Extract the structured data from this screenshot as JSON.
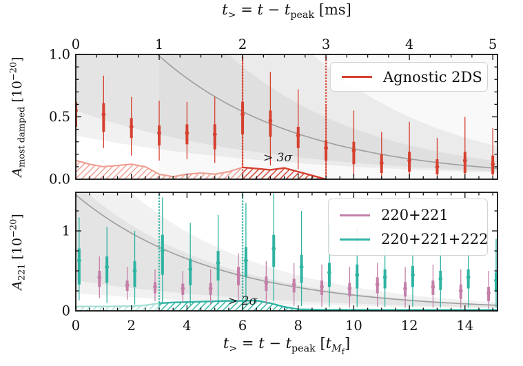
{
  "labels": {
    "top_x": {
      "t1": "t",
      "sub1": ">",
      "eq": " = ",
      "t2": "t",
      "minus": " − ",
      "t3": "t",
      "sub2": "peak",
      "unit": " [ms]"
    },
    "bottom_x": {
      "t1": "t",
      "sub1": ">",
      "eq": " = ",
      "t2": "t",
      "minus": " − ",
      "t3": "t",
      "sub2": "peak",
      "unit_open": " [",
      "unit_t": "t",
      "unit_sub": "M",
      "unit_subsub": "f",
      "unit_close": "]"
    },
    "y_top": {
      "A": "A",
      "sub": "most damped",
      "unit_open": " [10",
      "sup": "−20",
      "unit_close": "]"
    },
    "y_bottom": {
      "A": "A",
      "sub": "221",
      "unit_open": " [10",
      "sup": "−20",
      "unit_close": "]"
    }
  },
  "chart_data": [
    {
      "type": "errorbar",
      "panel": "top",
      "x_axis": {
        "unit": "ms",
        "ticks_ms": [
          0,
          1,
          2,
          3,
          4,
          5
        ],
        "tick_labels": [
          "0",
          "1",
          "2",
          "3",
          "4",
          "5"
        ],
        "tmf_per_ms": 3,
        "xlim_tmf": [
          0,
          15.17
        ],
        "minor_step_ms": 0.25,
        "label": "t> = t − tpeak [ms]"
      },
      "y_axis": {
        "label": "A_most damped [10^-20]",
        "ticks": [
          0,
          0.5,
          1.0
        ],
        "tick_labels": [
          "0.0",
          "0.5",
          "1.0"
        ],
        "ylim": [
          0,
          1.0
        ],
        "minor_step": 0.1
      },
      "legend": [
        {
          "label": "Agnostic 2DS",
          "color": "#d6402f"
        }
      ],
      "vlines_tmf": [
        6,
        9
      ],
      "vline_color": "#d6402f",
      "annotation": {
        "text": "> 3σ",
        "x_tmf": 6.8,
        "y": 0.15
      },
      "series": [
        {
          "name": "Agnostic 2DS",
          "color": "#d6402f",
          "x_tmf": [
            0,
            1,
            2,
            3,
            4,
            5,
            6,
            7,
            8,
            9,
            10,
            11,
            12,
            13,
            14,
            15
          ],
          "median": [
            0.55,
            0.52,
            0.42,
            0.37,
            0.37,
            0.36,
            0.52,
            0.47,
            0.35,
            0.25,
            0.23,
            0.13,
            0.15,
            0.1,
            0.15,
            0.12
          ],
          "ci50_lo": [
            0.42,
            0.38,
            0.33,
            0.27,
            0.28,
            0.24,
            0.36,
            0.34,
            0.25,
            0.15,
            0.12,
            0.05,
            0.06,
            0.04,
            0.05,
            0.04
          ],
          "ci50_hi": [
            0.62,
            0.61,
            0.49,
            0.43,
            0.44,
            0.44,
            0.62,
            0.55,
            0.42,
            0.31,
            0.3,
            0.2,
            0.22,
            0.16,
            0.22,
            0.19
          ],
          "ci90_lo": [
            0.3,
            0.25,
            0.19,
            0.15,
            0.16,
            0.13,
            0.09,
            0.11,
            0.08,
            0.03,
            0.02,
            0.0,
            0.0,
            0.0,
            0.0,
            0.0
          ],
          "ci90_hi": [
            0.8,
            0.83,
            0.66,
            0.63,
            0.62,
            0.66,
            1.0,
            0.86,
            0.72,
            0.6,
            0.55,
            0.38,
            0.46,
            0.33,
            0.5,
            0.41
          ]
        }
      ],
      "exclusion_region": {
        "sigma_label": "> 3σ",
        "pale_color": "#ef9f93",
        "dark_color": "#d6402f",
        "pale_range_tmf": [
          0,
          6
        ],
        "dark_range_tmf": [
          6,
          9
        ],
        "boundary_x_tmf": [
          0,
          0.5,
          1,
          1.5,
          2,
          2.5,
          3,
          3.5,
          4,
          4.5,
          5,
          5.5,
          6,
          6.5,
          7,
          7.5,
          8,
          8.5,
          9
        ],
        "boundary_y": [
          0.15,
          0.12,
          0.1,
          0.11,
          0.12,
          0.1,
          0.04,
          0.02,
          0.04,
          0.05,
          0.04,
          0.06,
          0.095,
          0.085,
          0.075,
          0.09,
          0.06,
          0.03,
          0.0
        ]
      },
      "model_curve": {
        "color": "#a0a0a0",
        "amp": 1.8,
        "tau_tmf": 5,
        "bands": [
          {
            "lo_amp": 0.55,
            "lo_tau": 7,
            "hi_amp": 3.0,
            "hi_tau": 5
          },
          {
            "lo_amp": 0.35,
            "lo_tau": 8,
            "hi_amp": 5.5,
            "hi_tau": 5
          }
        ],
        "overlay_from_tmf": 3
      }
    },
    {
      "type": "errorbar",
      "panel": "bottom",
      "x_axis": {
        "unit": "t_Mf",
        "ticks": [
          0,
          2,
          4,
          6,
          8,
          10,
          12,
          14
        ],
        "tick_labels": [
          "0",
          "2",
          "4",
          "6",
          "8",
          "10",
          "12",
          "14"
        ],
        "xlim_tmf": [
          0,
          15.17
        ],
        "minor_step": 0.5,
        "label": "t> = t − tpeak [t_Mf]"
      },
      "y_axis": {
        "label": "A_221 [10^-20]",
        "ticks": [
          0,
          1
        ],
        "tick_labels": [
          "0",
          "1"
        ],
        "ylim": [
          0,
          1.48
        ],
        "minor_step": 0.25
      },
      "legend": [
        {
          "label": "220+221",
          "color": "#c47fa8"
        },
        {
          "label": "220+221+222",
          "color": "#2fb3a3"
        }
      ],
      "vlines_tmf": [
        3,
        6
      ],
      "vline_color": "#2fb3a3",
      "annotation": {
        "text": "> 2σ",
        "x_tmf": 5.5,
        "y": 0.17
      },
      "series": [
        {
          "name": "220+221",
          "color": "#c47fa8",
          "x_tmf": [
            0.85,
            1.85,
            2.85,
            3.85,
            4.85,
            5.85,
            6.85,
            7.85,
            8.85,
            9.85,
            10.85,
            11.85,
            12.85,
            13.85,
            14.85
          ],
          "median": [
            0.42,
            0.32,
            0.3,
            0.28,
            0.28,
            0.45,
            0.35,
            0.33,
            0.3,
            0.28,
            0.33,
            0.28,
            0.3,
            0.25,
            0.22
          ],
          "ci50_lo": [
            0.3,
            0.25,
            0.22,
            0.2,
            0.2,
            0.32,
            0.25,
            0.23,
            0.2,
            0.18,
            0.22,
            0.18,
            0.2,
            0.15,
            0.12
          ],
          "ci50_hi": [
            0.5,
            0.38,
            0.36,
            0.34,
            0.35,
            0.55,
            0.43,
            0.4,
            0.38,
            0.35,
            0.42,
            0.36,
            0.38,
            0.33,
            0.3
          ],
          "ci90_lo": [
            0.16,
            0.14,
            0.12,
            0.1,
            0.08,
            0.12,
            0.08,
            0.06,
            0.05,
            0.04,
            0.05,
            0.04,
            0.04,
            0.03,
            0.02
          ],
          "ci90_hi": [
            0.68,
            0.55,
            0.52,
            0.5,
            0.52,
            0.72,
            0.62,
            0.6,
            0.58,
            0.55,
            0.6,
            0.55,
            0.58,
            0.52,
            0.5
          ]
        },
        {
          "name": "220+221+222",
          "color": "#2fb3a3",
          "x_tmf": [
            0.12,
            1.12,
            2.12,
            3.12,
            4.12,
            5.12,
            6.12,
            7.12,
            8.12,
            9.12,
            10.12,
            11.12,
            12.12,
            13.12,
            14.12,
            15.12
          ],
          "median": [
            0.63,
            0.55,
            0.5,
            0.75,
            0.52,
            0.6,
            0.63,
            0.78,
            0.55,
            0.48,
            0.45,
            0.42,
            0.45,
            0.4,
            0.42,
            0.38
          ],
          "ci50_lo": [
            0.33,
            0.35,
            0.3,
            0.45,
            0.32,
            0.38,
            0.42,
            0.55,
            0.35,
            0.3,
            0.28,
            0.28,
            0.3,
            0.26,
            0.28,
            0.24
          ],
          "ci50_hi": [
            0.78,
            0.68,
            0.62,
            0.95,
            0.65,
            0.75,
            0.8,
            0.95,
            0.7,
            0.6,
            0.58,
            0.52,
            0.56,
            0.5,
            0.52,
            0.48
          ],
          "ci90_lo": [
            0.13,
            0.1,
            0.08,
            0.1,
            0.06,
            0.08,
            0.1,
            0.12,
            0.06,
            0.05,
            0.05,
            0.05,
            0.05,
            0.04,
            0.04,
            0.04
          ],
          "ci90_hi": [
            1.17,
            1.05,
            1.0,
            1.42,
            1.1,
            1.2,
            1.35,
            1.48,
            1.25,
            1.1,
            1.05,
            0.95,
            0.98,
            0.92,
            0.95,
            0.9
          ]
        }
      ],
      "exclusion_region": {
        "sigma_label": "> 2σ",
        "pale_color": "#a6ddd4",
        "dark_color": "#2fb3a3",
        "pale_range_tmf": [
          0,
          3
        ],
        "dark_range_tmf": [
          3,
          15.17
        ],
        "boundary_x_tmf": [
          0,
          1,
          2,
          2.5,
          3,
          3.5,
          4,
          4.5,
          5,
          5.5,
          6,
          6.5,
          7,
          7.5,
          8,
          9,
          10,
          11,
          12,
          13,
          14,
          15.17
        ],
        "boundary_y": [
          0.055,
          0.055,
          0.06,
          0.07,
          0.095,
          0.105,
          0.11,
          0.115,
          0.12,
          0.125,
          0.125,
          0.13,
          0.095,
          0.05,
          0.02,
          0.013,
          0.013,
          0.012,
          0.012,
          0.012,
          0.012,
          0.012
        ]
      },
      "model_curve": {
        "color": "#a0a0a0",
        "amp": 1.45,
        "tau_tmf": 5,
        "bands": [
          {
            "lo_amp": 0.38,
            "lo_tau": 7,
            "hi_amp": 1.6,
            "hi_tau": 5
          },
          {
            "lo_amp": 0.22,
            "lo_tau": 8,
            "hi_amp": 2.2,
            "hi_tau": 5
          }
        ]
      }
    }
  ]
}
